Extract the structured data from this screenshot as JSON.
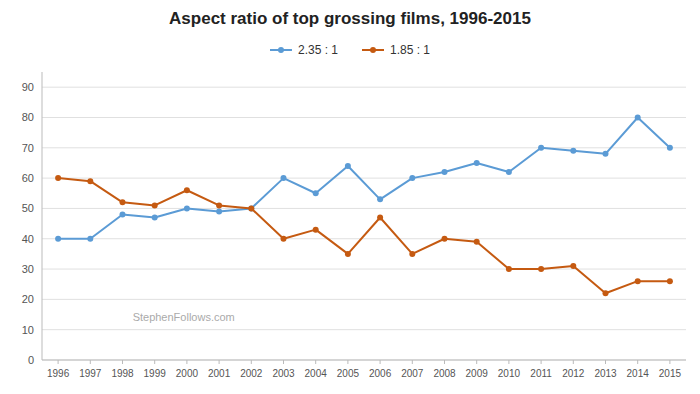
{
  "chart_data": {
    "type": "line",
    "title": "Aspect ratio of top grossing films, 1996-2015",
    "x": [
      1996,
      1997,
      1998,
      1999,
      2000,
      2001,
      2002,
      2003,
      2004,
      2005,
      2006,
      2007,
      2008,
      2009,
      2010,
      2011,
      2012,
      2013,
      2014,
      2015
    ],
    "series": [
      {
        "name": "2.35 : 1",
        "color": "#5B9BD5",
        "values": [
          40,
          40,
          48,
          47,
          50,
          49,
          50,
          60,
          55,
          64,
          53,
          60,
          62,
          65,
          62,
          70,
          69,
          68,
          80,
          70
        ]
      },
      {
        "name": "1.85 : 1",
        "color": "#C55A11",
        "values": [
          60,
          59,
          52,
          51,
          56,
          51,
          50,
          40,
          43,
          35,
          47,
          35,
          40,
          39,
          30,
          30,
          31,
          22,
          26,
          26
        ]
      }
    ],
    "xlim": [
      1995.5,
      2015.5
    ],
    "xticks": [
      1996,
      1997,
      1998,
      1999,
      2000,
      2001,
      2002,
      2003,
      2004,
      2005,
      2006,
      2007,
      2008,
      2009,
      2010,
      2011,
      2012,
      2013,
      2014,
      2015
    ],
    "ylim": [
      0,
      95
    ],
    "yticks": [
      0,
      10,
      20,
      30,
      40,
      50,
      60,
      70,
      80,
      90
    ],
    "grid": true,
    "legend": "top",
    "marker": "circle",
    "annotations": [
      "StephenFollows.com"
    ]
  }
}
